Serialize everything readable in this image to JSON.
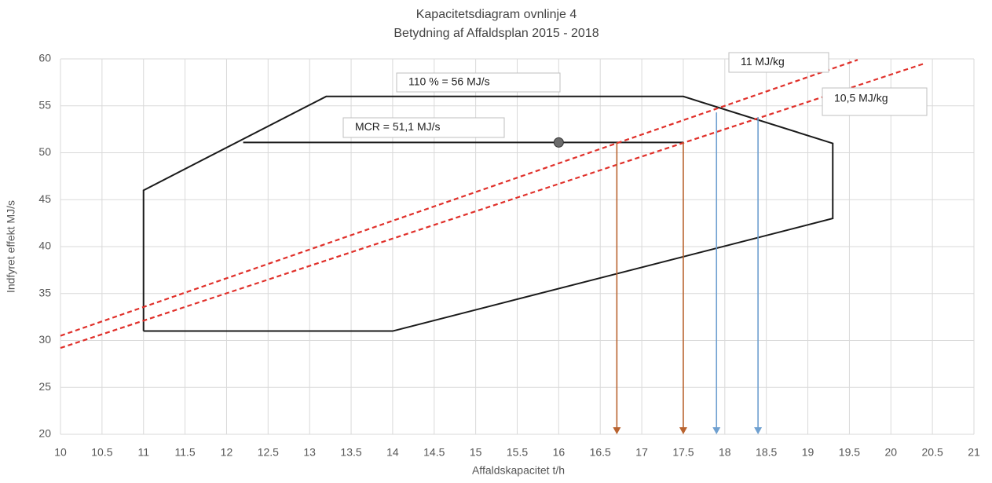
{
  "chart_data": {
    "type": "line",
    "title": "Kapacitetsdiagram ovnlinje 4",
    "subtitle": "Betydning af Affaldsplan 2015 - 2018",
    "xlabel": "Affaldskapacitet t/h",
    "ylabel": "Indfyret effekt MJ/s",
    "xlim": [
      10,
      21
    ],
    "ylim": [
      20,
      60
    ],
    "xticks": [
      10,
      10.5,
      11,
      11.5,
      12,
      12.5,
      13,
      13.5,
      14,
      14.5,
      15,
      15.5,
      16,
      16.5,
      17,
      17.5,
      18,
      18.5,
      19,
      19.5,
      20,
      20.5,
      21
    ],
    "yticks": [
      20,
      25,
      30,
      35,
      40,
      45,
      50,
      55,
      60
    ],
    "grid": true,
    "series": [
      {
        "color": "#1a1a1a",
        "x": [
          11,
          11,
          13.2,
          17.5,
          19.3,
          19.3,
          14,
          11
        ],
        "values": [
          31,
          46,
          56,
          56,
          51,
          43,
          31,
          31
        ]
      },
      {
        "color": "#1a1a1a",
        "x": [
          12.2,
          17.5
        ],
        "values": [
          51.1,
          51.1
        ]
      },
      {
        "color": "#e0302a",
        "dash": true,
        "x": [
          10,
          19.6
        ],
        "values": [
          30.5,
          59.9
        ]
      },
      {
        "color": "#e0302a",
        "dash": true,
        "x": [
          10,
          20.4
        ],
        "values": [
          29.2,
          59.5
        ]
      }
    ],
    "point": {
      "x": 16,
      "y": 51.1,
      "color": "#6b6b6b"
    },
    "arrows": [
      {
        "x": 16.7,
        "y": 51.1,
        "color": "#b9632f"
      },
      {
        "x": 17.5,
        "y": 51.1,
        "color": "#b9632f"
      },
      {
        "x": 17.9,
        "y": 54.3,
        "color": "#6fa0d0"
      },
      {
        "x": 18.4,
        "y": 53.8,
        "color": "#6fa0d0"
      }
    ],
    "annotations": [
      "110 % = 56 MJ/s",
      "MCR = 51,1 MJ/s",
      "11 MJ/kg",
      "10,5 MJ/kg"
    ]
  }
}
